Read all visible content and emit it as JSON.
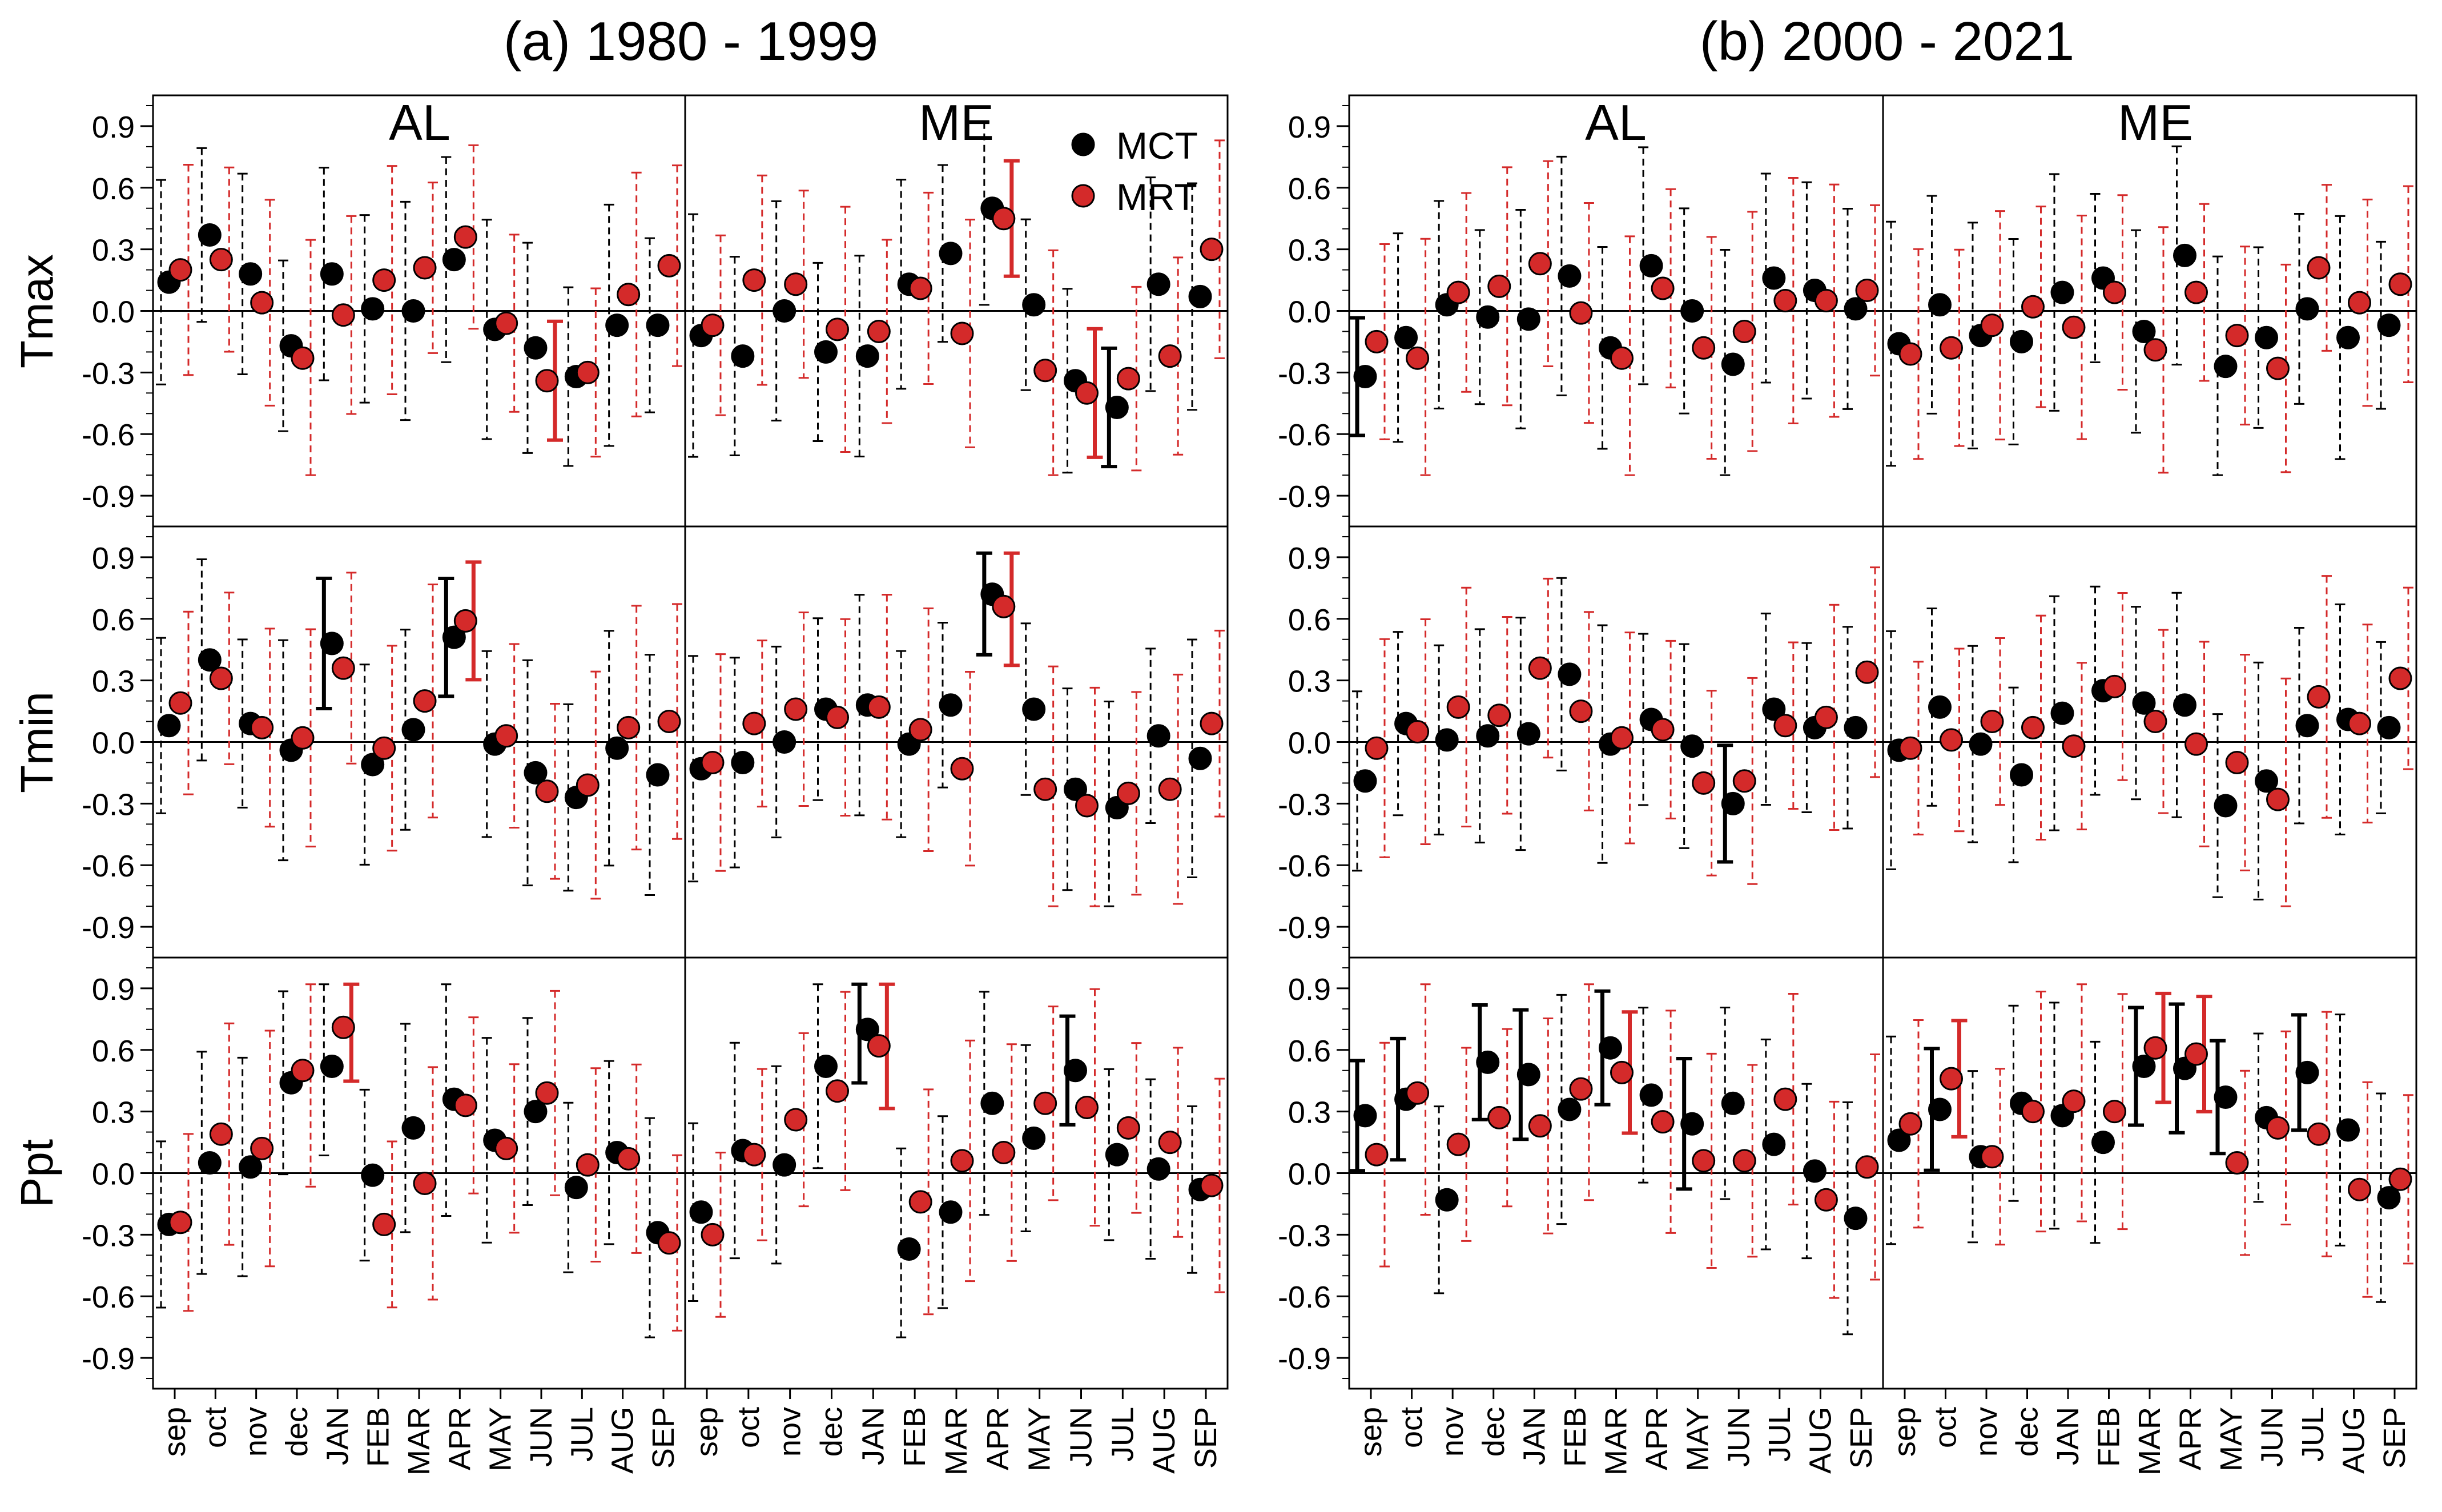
{
  "chart_data": {
    "type": "scatter",
    "description_kind": "correlation points with 95% confidence interval whiskers",
    "months": [
      "sep",
      "oct",
      "nov",
      "dec",
      "JAN",
      "FEB",
      "MAR",
      "APR",
      "MAY",
      "JUN",
      "JUL",
      "AUG",
      "SEP"
    ],
    "variables": [
      "Tmax",
      "Tmin",
      "Ppt"
    ],
    "regions": [
      "AL",
      "ME"
    ],
    "legend": [
      {
        "name": "MCT",
        "color": "#000000"
      },
      {
        "name": "MRT",
        "color": "#d42a2a"
      }
    ],
    "ylim": [
      -1.05,
      1.05
    ],
    "yticks": [
      "0.9",
      "0.6",
      "0.3",
      "0.0",
      "-0.3",
      "-0.6",
      "-0.9"
    ],
    "colors": {
      "mct": "#000000",
      "mrt": "#d42a2a"
    },
    "periods": [
      {
        "title": "(a) 1980 - 1999",
        "panels": {
          "Tmax": {
            "AL": {
              "MCT": [
                0.14,
                0.37,
                0.18,
                -0.17,
                0.18,
                0.01,
                0.0,
                0.25,
                -0.09,
                -0.18,
                -0.32,
                -0.07,
                -0.07
              ],
              "MRT": [
                0.2,
                0.25,
                0.04,
                -0.23,
                -0.02,
                0.15,
                0.21,
                0.36,
                -0.06,
                -0.34,
                -0.3,
                0.08,
                0.22
              ],
              "MCT_sig": [
                false,
                false,
                false,
                false,
                false,
                false,
                false,
                false,
                false,
                false,
                false,
                false,
                false
              ],
              "MRT_sig": [
                false,
                false,
                false,
                false,
                false,
                false,
                false,
                false,
                false,
                true,
                false,
                false,
                false
              ]
            },
            "ME": {
              "MCT": [
                -0.12,
                -0.22,
                0.0,
                -0.2,
                -0.22,
                0.13,
                0.28,
                0.5,
                0.03,
                -0.34,
                -0.47,
                0.13,
                0.07
              ],
              "MRT": [
                -0.07,
                0.15,
                0.13,
                -0.09,
                -0.1,
                0.11,
                -0.11,
                0.45,
                -0.29,
                -0.4,
                -0.33,
                -0.22,
                0.3
              ],
              "MCT_sig": [
                false,
                false,
                false,
                false,
                false,
                false,
                false,
                false,
                false,
                false,
                true,
                false,
                false
              ],
              "MRT_sig": [
                false,
                false,
                false,
                false,
                false,
                false,
                false,
                true,
                false,
                true,
                false,
                false,
                false
              ]
            }
          },
          "Tmin": {
            "AL": {
              "MCT": [
                0.08,
                0.4,
                0.09,
                -0.04,
                0.48,
                -0.11,
                0.06,
                0.51,
                -0.01,
                -0.15,
                -0.27,
                -0.03,
                -0.16
              ],
              "MRT": [
                0.19,
                0.31,
                0.07,
                0.02,
                0.36,
                -0.03,
                0.2,
                0.59,
                0.03,
                -0.24,
                -0.21,
                0.07,
                0.1
              ],
              "MCT_sig": [
                false,
                false,
                false,
                false,
                true,
                false,
                false,
                true,
                false,
                false,
                false,
                false,
                false
              ],
              "MRT_sig": [
                false,
                false,
                false,
                false,
                false,
                false,
                false,
                true,
                false,
                false,
                false,
                false,
                false
              ]
            },
            "ME": {
              "MCT": [
                -0.13,
                -0.1,
                0.0,
                0.16,
                0.18,
                -0.01,
                0.18,
                0.72,
                0.16,
                -0.23,
                -0.32,
                0.03,
                -0.08
              ],
              "MRT": [
                -0.1,
                0.09,
                0.16,
                0.12,
                0.17,
                0.06,
                -0.13,
                0.66,
                -0.23,
                -0.31,
                -0.25,
                -0.23,
                0.09
              ],
              "MCT_sig": [
                false,
                false,
                false,
                false,
                false,
                false,
                false,
                true,
                false,
                false,
                false,
                false,
                false
              ],
              "MRT_sig": [
                false,
                false,
                false,
                false,
                false,
                false,
                false,
                true,
                false,
                false,
                false,
                false,
                false
              ]
            }
          },
          "Ppt": {
            "AL": {
              "MCT": [
                -0.25,
                0.05,
                0.03,
                0.44,
                0.52,
                -0.01,
                0.22,
                0.36,
                0.16,
                0.3,
                -0.07,
                0.1,
                -0.29
              ],
              "MRT": [
                -0.24,
                0.19,
                0.12,
                0.5,
                0.71,
                -0.25,
                -0.05,
                0.33,
                0.12,
                0.39,
                0.04,
                0.07,
                -0.34
              ],
              "MCT_sig": [
                false,
                false,
                false,
                false,
                false,
                false,
                false,
                false,
                false,
                false,
                false,
                false,
                false
              ],
              "MRT_sig": [
                false,
                false,
                false,
                false,
                true,
                false,
                false,
                false,
                false,
                false,
                false,
                false,
                false
              ]
            },
            "ME": {
              "MCT": [
                -0.19,
                0.11,
                0.04,
                0.52,
                0.7,
                -0.37,
                -0.19,
                0.34,
                0.17,
                0.5,
                0.09,
                0.02,
                -0.08
              ],
              "MRT": [
                -0.3,
                0.09,
                0.26,
                0.4,
                0.62,
                -0.14,
                0.06,
                0.1,
                0.34,
                0.32,
                0.22,
                0.15,
                -0.06
              ],
              "MCT_sig": [
                false,
                false,
                false,
                false,
                true,
                false,
                false,
                false,
                false,
                true,
                false,
                false,
                false
              ],
              "MRT_sig": [
                false,
                false,
                false,
                false,
                true,
                false,
                false,
                false,
                false,
                false,
                false,
                false,
                false
              ]
            }
          }
        }
      },
      {
        "title": "(b) 2000 - 2021",
        "panels": {
          "Tmax": {
            "AL": {
              "MCT": [
                -0.32,
                -0.13,
                0.03,
                -0.03,
                -0.04,
                0.17,
                -0.18,
                0.22,
                0.0,
                -0.26,
                0.16,
                0.1,
                0.01
              ],
              "MRT": [
                -0.15,
                -0.23,
                0.09,
                0.12,
                0.23,
                -0.01,
                -0.23,
                0.11,
                -0.18,
                -0.1,
                0.05,
                0.05,
                0.1
              ],
              "MCT_sig": [
                true,
                false,
                false,
                false,
                false,
                false,
                false,
                false,
                false,
                false,
                false,
                false,
                false
              ],
              "MRT_sig": [
                false,
                false,
                false,
                false,
                false,
                false,
                false,
                false,
                false,
                false,
                false,
                false,
                false
              ]
            },
            "ME": {
              "MCT": [
                -0.16,
                0.03,
                -0.12,
                -0.15,
                0.09,
                0.16,
                -0.1,
                0.27,
                -0.27,
                -0.13,
                0.01,
                -0.13,
                -0.07
              ],
              "MRT": [
                -0.21,
                -0.18,
                -0.07,
                0.02,
                -0.08,
                0.09,
                -0.19,
                0.09,
                -0.12,
                -0.28,
                0.21,
                0.04,
                0.13
              ],
              "MCT_sig": [
                false,
                false,
                false,
                false,
                false,
                false,
                false,
                false,
                false,
                false,
                false,
                false,
                false
              ],
              "MRT_sig": [
                false,
                false,
                false,
                false,
                false,
                false,
                false,
                false,
                false,
                false,
                false,
                false,
                false
              ]
            }
          },
          "Tmin": {
            "AL": {
              "MCT": [
                -0.19,
                0.09,
                0.01,
                0.03,
                0.04,
                0.33,
                -0.01,
                0.11,
                -0.02,
                -0.3,
                0.16,
                0.07,
                0.07
              ],
              "MRT": [
                -0.03,
                0.05,
                0.17,
                0.13,
                0.36,
                0.15,
                0.02,
                0.06,
                -0.2,
                -0.19,
                0.08,
                0.12,
                0.34
              ],
              "MCT_sig": [
                false,
                false,
                false,
                false,
                false,
                false,
                false,
                false,
                false,
                true,
                false,
                false,
                false
              ],
              "MRT_sig": [
                false,
                false,
                false,
                false,
                false,
                false,
                false,
                false,
                false,
                false,
                false,
                false,
                false
              ]
            },
            "ME": {
              "MCT": [
                -0.04,
                0.17,
                -0.01,
                -0.16,
                0.14,
                0.25,
                0.19,
                0.18,
                -0.31,
                -0.19,
                0.08,
                0.11,
                0.07
              ],
              "MRT": [
                -0.03,
                0.01,
                0.1,
                0.07,
                -0.02,
                0.27,
                0.1,
                -0.01,
                -0.1,
                -0.28,
                0.22,
                0.09,
                0.31
              ],
              "MCT_sig": [
                false,
                false,
                false,
                false,
                false,
                false,
                false,
                false,
                false,
                false,
                false,
                false,
                false
              ],
              "MRT_sig": [
                false,
                false,
                false,
                false,
                false,
                false,
                false,
                false,
                false,
                false,
                false,
                false,
                false
              ]
            }
          },
          "Ppt": {
            "AL": {
              "MCT": [
                0.28,
                0.36,
                -0.13,
                0.54,
                0.48,
                0.31,
                0.61,
                0.38,
                0.24,
                0.34,
                0.14,
                0.01,
                -0.22
              ],
              "MRT": [
                0.09,
                0.39,
                0.14,
                0.27,
                0.23,
                0.41,
                0.49,
                0.25,
                0.06,
                0.06,
                0.36,
                -0.13,
                0.03
              ],
              "MCT_sig": [
                true,
                true,
                false,
                true,
                true,
                false,
                true,
                false,
                true,
                false,
                false,
                false,
                false
              ],
              "MRT_sig": [
                false,
                false,
                false,
                false,
                false,
                false,
                true,
                false,
                false,
                false,
                false,
                false,
                false
              ]
            },
            "ME": {
              "MCT": [
                0.16,
                0.31,
                0.08,
                0.34,
                0.28,
                0.15,
                0.52,
                0.51,
                0.37,
                0.27,
                0.49,
                0.21,
                -0.12
              ],
              "MRT": [
                0.24,
                0.46,
                0.08,
                0.3,
                0.35,
                0.3,
                0.61,
                0.58,
                0.05,
                0.22,
                0.19,
                -0.08,
                -0.03
              ],
              "MCT_sig": [
                false,
                true,
                false,
                false,
                false,
                false,
                true,
                true,
                true,
                false,
                true,
                false,
                false
              ],
              "MRT_sig": [
                false,
                true,
                false,
                false,
                false,
                false,
                true,
                true,
                false,
                false,
                false,
                false,
                false
              ]
            }
          }
        }
      }
    ]
  }
}
